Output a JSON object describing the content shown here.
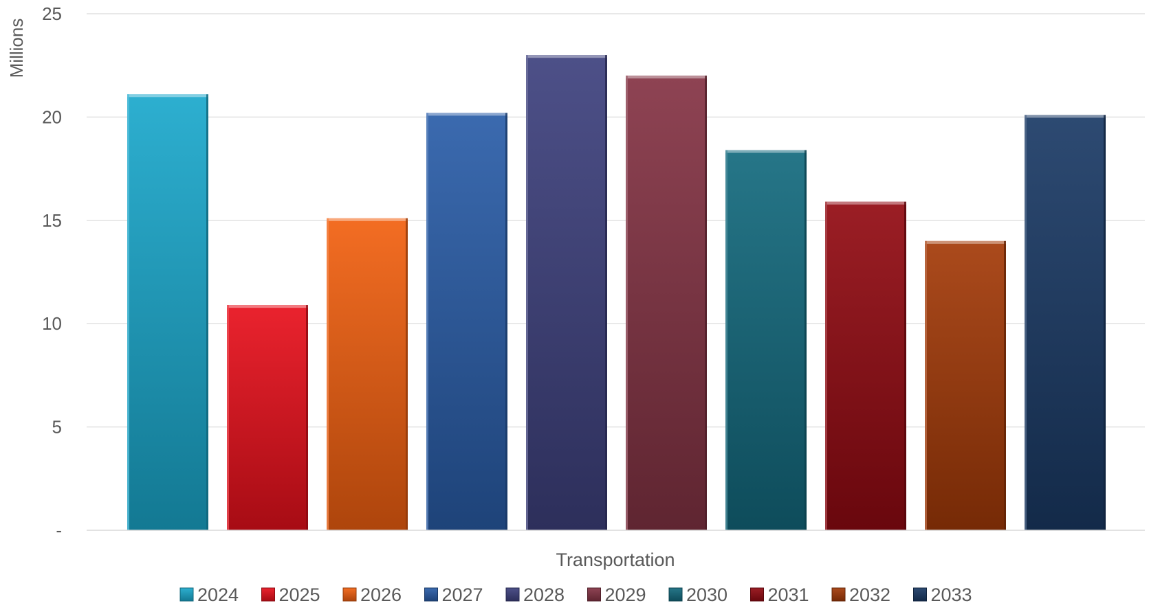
{
  "chart_data": {
    "type": "bar",
    "title": "",
    "xlabel": "Transportation",
    "ylabel": "Millions",
    "ylim": [
      0,
      25
    ],
    "yticks": [
      0,
      5,
      10,
      15,
      20,
      25
    ],
    "ytick_labels": [
      "-",
      "5",
      "10",
      "15",
      "20",
      "25"
    ],
    "grid": true,
    "legend_position": "bottom",
    "categories": [
      "Transportation"
    ],
    "series": [
      {
        "name": "2024",
        "values": [
          21.1
        ],
        "color": "#1ba8cc"
      },
      {
        "name": "2025",
        "values": [
          10.9
        ],
        "color": "#e8101c"
      },
      {
        "name": "2026",
        "values": [
          15.1
        ],
        "color": "#f26010"
      },
      {
        "name": "2027",
        "values": [
          20.2
        ],
        "color": "#2a5da8"
      },
      {
        "name": "2028",
        "values": [
          23.0
        ],
        "color": "#3e417e"
      },
      {
        "name": "2029",
        "values": [
          22.0
        ],
        "color": "#843344"
      },
      {
        "name": "2030",
        "values": [
          18.4
        ],
        "color": "#136a7e"
      },
      {
        "name": "2031",
        "values": [
          15.9
        ],
        "color": "#920a12"
      },
      {
        "name": "2032",
        "values": [
          14.0
        ],
        "color": "#a43a08"
      },
      {
        "name": "2033",
        "values": [
          20.1
        ],
        "color": "#1b3a66"
      }
    ]
  }
}
